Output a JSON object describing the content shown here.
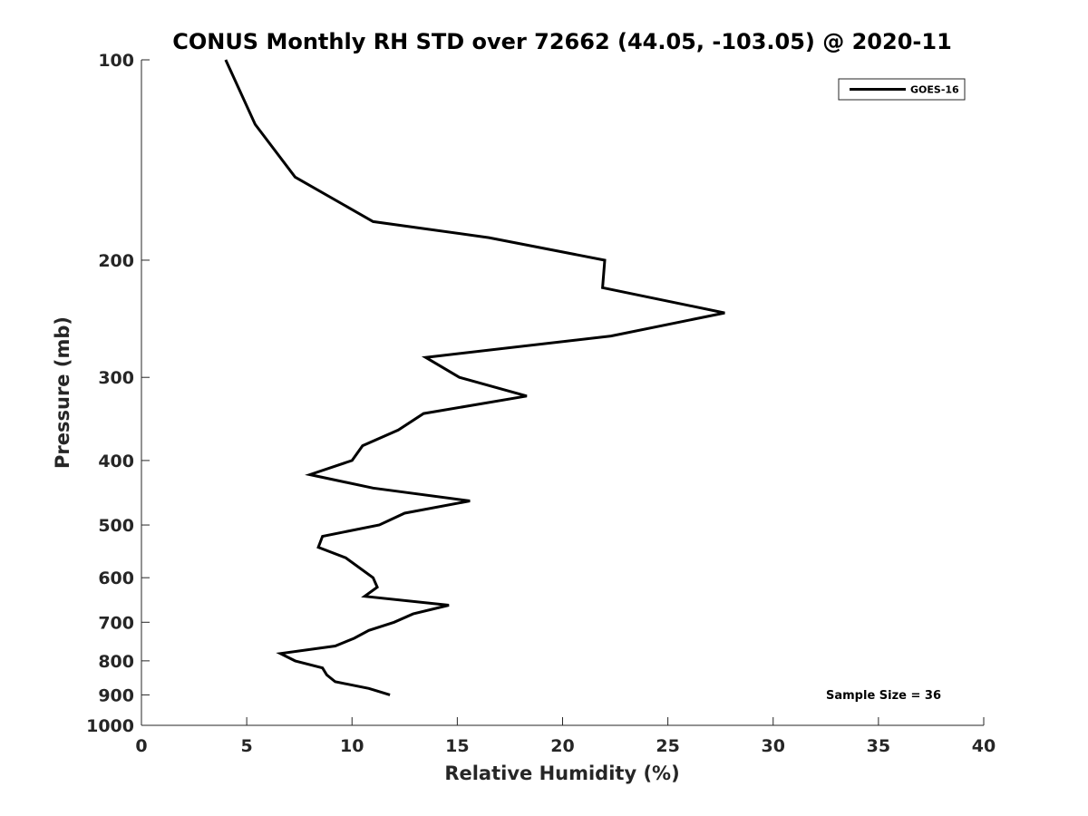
{
  "chart_data": {
    "type": "line",
    "title": "CONUS Monthly RH STD over 72662 (44.05, -103.05) @ 2020-11",
    "xlabel": "Relative Humidity (%)",
    "ylabel": "Pressure (mb)",
    "xlim": [
      0,
      40
    ],
    "ylim": [
      100,
      1000
    ],
    "y_scale": "log",
    "y_reversed": true,
    "x_ticks": [
      "0",
      "5",
      "10",
      "15",
      "20",
      "25",
      "30",
      "35",
      "40"
    ],
    "y_ticks": [
      "100",
      "200",
      "300",
      "400",
      "500",
      "600",
      "700",
      "800",
      "900",
      "1000"
    ],
    "grid": false,
    "legend": {
      "position": "top-right",
      "entries": [
        "GOES-16"
      ]
    },
    "annotation": "Sample Size = 36",
    "series": [
      {
        "name": "GOES-16",
        "color": "#000000",
        "points": [
          {
            "x": 4.0,
            "y": 100
          },
          {
            "x": 5.4,
            "y": 125
          },
          {
            "x": 7.3,
            "y": 150
          },
          {
            "x": 11.0,
            "y": 175
          },
          {
            "x": 16.5,
            "y": 185
          },
          {
            "x": 22.0,
            "y": 200
          },
          {
            "x": 21.9,
            "y": 220
          },
          {
            "x": 27.7,
            "y": 240
          },
          {
            "x": 22.3,
            "y": 260
          },
          {
            "x": 13.5,
            "y": 280
          },
          {
            "x": 15.1,
            "y": 300
          },
          {
            "x": 18.3,
            "y": 320
          },
          {
            "x": 13.4,
            "y": 340
          },
          {
            "x": 12.2,
            "y": 360
          },
          {
            "x": 10.5,
            "y": 380
          },
          {
            "x": 10.0,
            "y": 400
          },
          {
            "x": 8.0,
            "y": 420
          },
          {
            "x": 11.0,
            "y": 440
          },
          {
            "x": 15.6,
            "y": 460
          },
          {
            "x": 12.5,
            "y": 480
          },
          {
            "x": 11.3,
            "y": 500
          },
          {
            "x": 8.6,
            "y": 520
          },
          {
            "x": 8.4,
            "y": 540
          },
          {
            "x": 9.7,
            "y": 560
          },
          {
            "x": 11.0,
            "y": 600
          },
          {
            "x": 11.2,
            "y": 620
          },
          {
            "x": 10.6,
            "y": 640
          },
          {
            "x": 14.6,
            "y": 660
          },
          {
            "x": 12.9,
            "y": 680
          },
          {
            "x": 12.0,
            "y": 700
          },
          {
            "x": 10.8,
            "y": 720
          },
          {
            "x": 10.1,
            "y": 740
          },
          {
            "x": 9.2,
            "y": 760
          },
          {
            "x": 6.6,
            "y": 780
          },
          {
            "x": 7.3,
            "y": 800
          },
          {
            "x": 8.6,
            "y": 820
          },
          {
            "x": 8.8,
            "y": 840
          },
          {
            "x": 9.2,
            "y": 860
          },
          {
            "x": 10.8,
            "y": 880
          },
          {
            "x": 11.8,
            "y": 900
          }
        ]
      }
    ]
  }
}
